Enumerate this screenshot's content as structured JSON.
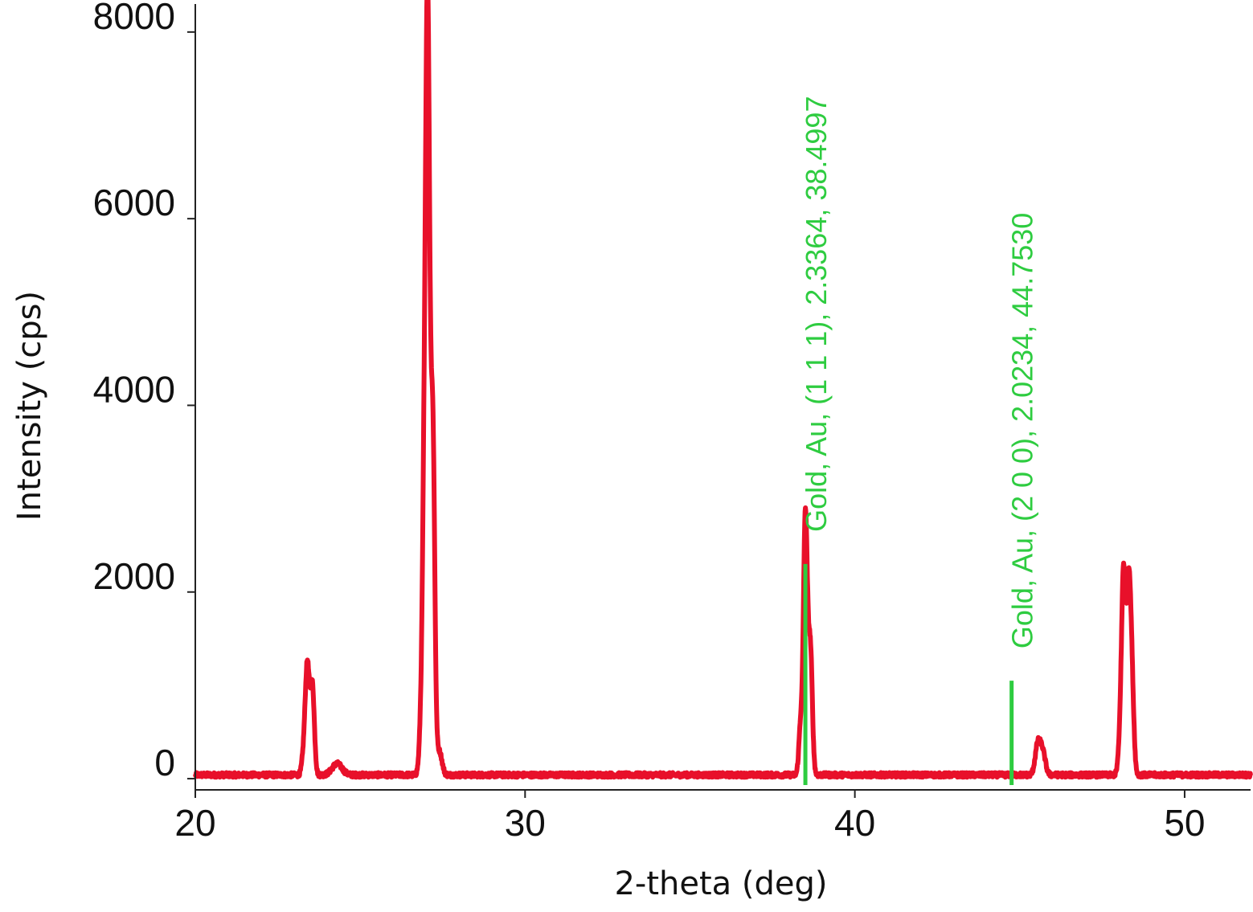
{
  "chart_data": {
    "type": "line",
    "xlabel": "2-theta (deg)",
    "ylabel": "Intensity (cps)",
    "xlim": [
      20,
      52
    ],
    "ylim": [
      -120,
      8300
    ],
    "x_ticks": [
      20,
      30,
      40,
      50
    ],
    "y_ticks": [
      0,
      2000,
      4000,
      6000,
      8000
    ],
    "grid": false,
    "series": [
      {
        "color": "#e8102a",
        "baseline": 40,
        "peaks": [
          {
            "x": 23.3,
            "y": 250,
            "width": 0.06
          },
          {
            "x": 23.4,
            "y": 1130,
            "width": 0.06
          },
          {
            "x": 23.55,
            "y": 950,
            "width": 0.06
          },
          {
            "x": 24.3,
            "y": 120,
            "width": 0.15
          },
          {
            "x": 26.85,
            "y": 450,
            "width": 0.06
          },
          {
            "x": 26.95,
            "y": 2900,
            "width": 0.06
          },
          {
            "x": 27.05,
            "y": 7600,
            "width": 0.06
          },
          {
            "x": 27.2,
            "y": 3700,
            "width": 0.06
          },
          {
            "x": 27.4,
            "y": 250,
            "width": 0.08
          },
          {
            "x": 38.35,
            "y": 500,
            "width": 0.05
          },
          {
            "x": 38.5,
            "y": 2800,
            "width": 0.06
          },
          {
            "x": 38.65,
            "y": 1350,
            "width": 0.06
          },
          {
            "x": 45.55,
            "y": 330,
            "width": 0.08
          },
          {
            "x": 45.7,
            "y": 230,
            "width": 0.08
          },
          {
            "x": 48.05,
            "y": 350,
            "width": 0.06
          },
          {
            "x": 48.15,
            "y": 2100,
            "width": 0.06
          },
          {
            "x": 48.3,
            "y": 1900,
            "width": 0.06
          },
          {
            "x": 48.4,
            "y": 950,
            "width": 0.06
          }
        ]
      }
    ],
    "reference_lines": [
      {
        "x": 38.4997,
        "height": 2300,
        "label": "Gold, Au, (1 1 1), 2.3364, 38.4997",
        "color": "#2ecc40"
      },
      {
        "x": 44.753,
        "height": 1050,
        "label": "Gold, Au, (2 0 0), 2.0234, 44.7530",
        "color": "#2ecc40"
      }
    ]
  }
}
